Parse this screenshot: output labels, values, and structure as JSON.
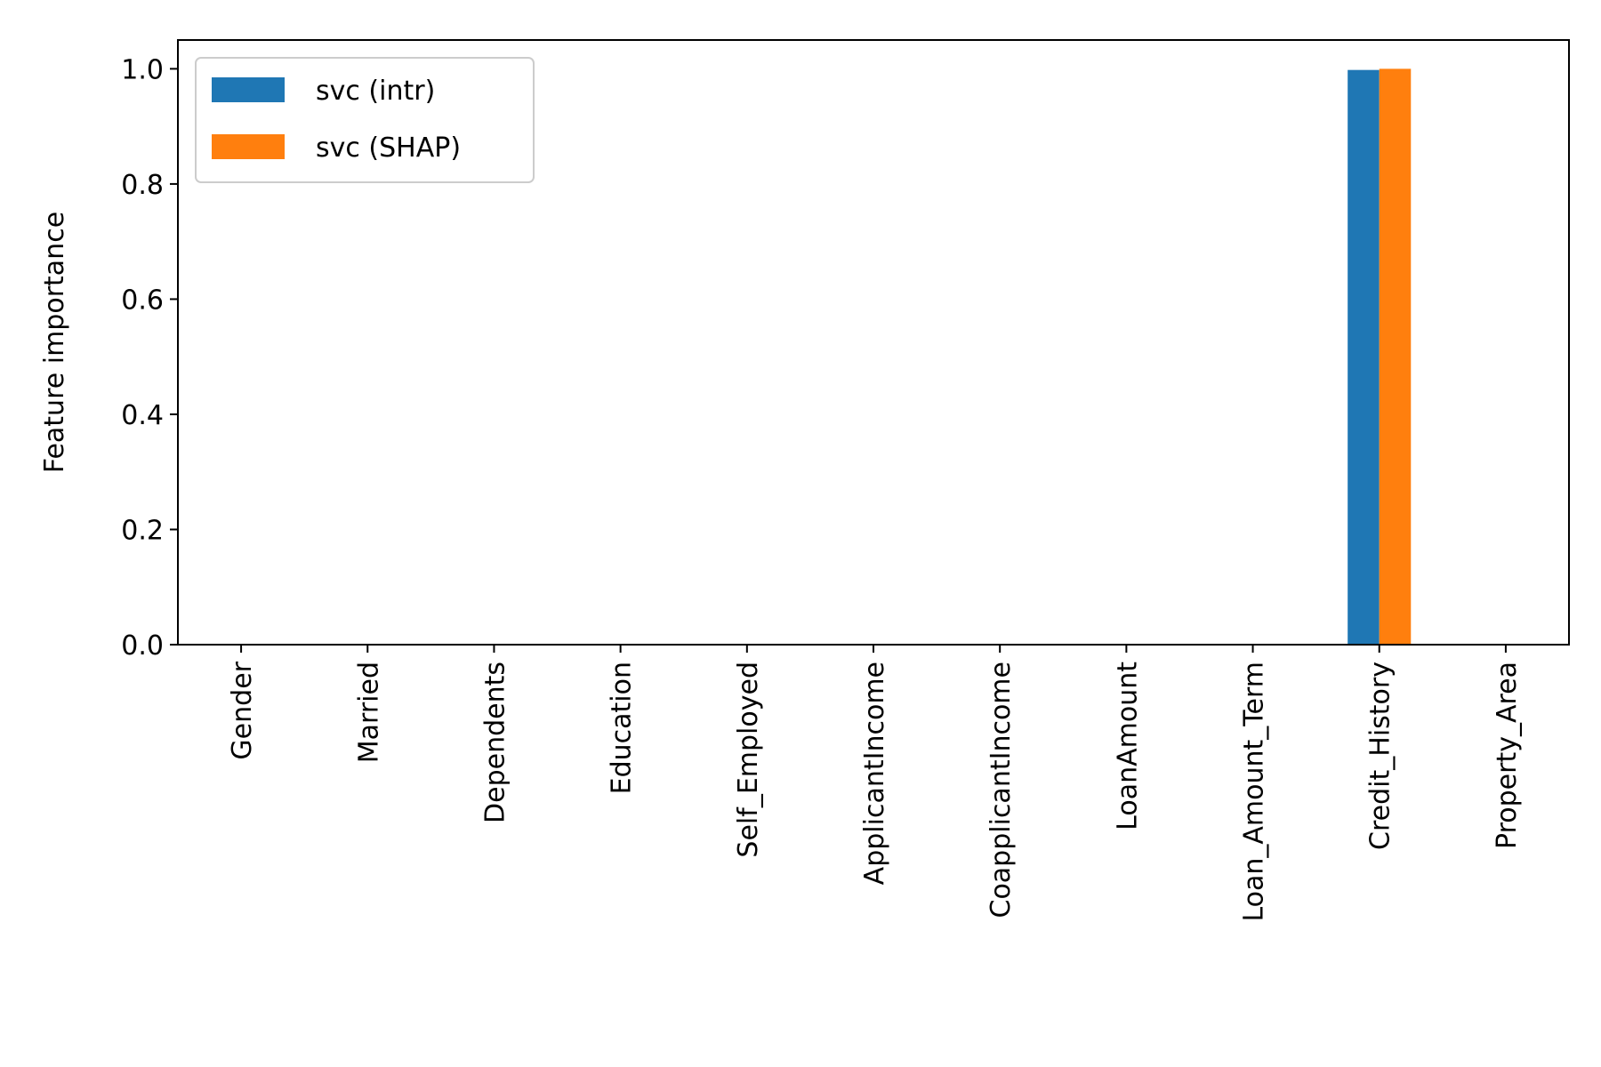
{
  "chart_data": {
    "type": "bar",
    "title": "",
    "xlabel": "",
    "ylabel": "Feature importance",
    "ylim": [
      0.0,
      1.05
    ],
    "yticks": [
      0.0,
      0.2,
      0.4,
      0.6,
      0.8,
      1.0
    ],
    "ytick_labels": [
      "0.0",
      "0.2",
      "0.4",
      "0.6",
      "0.8",
      "1.0"
    ],
    "categories": [
      "Gender",
      "Married",
      "Dependents",
      "Education",
      "Self_Employed",
      "ApplicantIncome",
      "CoapplicantIncome",
      "LoanAmount",
      "Loan_Amount_Term",
      "Credit_History",
      "Property_Area"
    ],
    "series": [
      {
        "name": "svc (intr)",
        "color": "#1f77b4",
        "values": [
          0,
          0,
          0,
          0,
          0,
          0,
          0,
          0,
          0,
          0.998,
          0
        ]
      },
      {
        "name": "svc (SHAP)",
        "color": "#ff7f0e",
        "values": [
          0,
          0,
          0,
          0,
          0,
          0,
          0,
          0,
          0,
          1.0,
          0
        ]
      }
    ],
    "legend": {
      "position": "upper-left"
    },
    "grid": false,
    "x_tick_rotation": 90
  }
}
